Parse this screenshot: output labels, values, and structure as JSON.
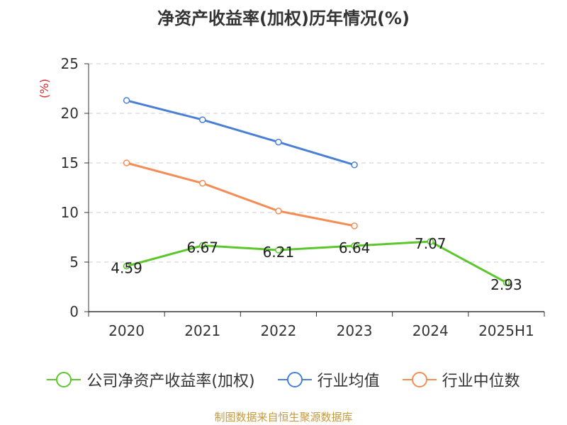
{
  "chart_data": {
    "type": "line",
    "title": "净资产收益率(加权)历年情况(%)",
    "ylabel": "(%)",
    "xlabel": "",
    "categories": [
      "2020",
      "2021",
      "2022",
      "2023",
      "2024",
      "2025H1"
    ],
    "ylim": [
      0,
      25
    ],
    "yticks": [
      "0",
      "5",
      "10",
      "15",
      "20",
      "25"
    ],
    "grid": true,
    "legend_position": "bottom",
    "series": [
      {
        "name": "公司净资产收益率(加权)",
        "color": "#5cc72c",
        "values": [
          4.59,
          6.67,
          6.21,
          6.64,
          7.07,
          2.93
        ],
        "labels": [
          "4.59",
          "6.67",
          "6.21",
          "6.64",
          "7.07",
          "2.93"
        ]
      },
      {
        "name": "行业均值",
        "color": "#4a7fd6",
        "values": [
          21.3,
          19.35,
          17.1,
          14.8,
          null,
          null
        ]
      },
      {
        "name": "行业中位数",
        "color": "#f48c56",
        "values": [
          15.0,
          12.95,
          10.15,
          8.65,
          null,
          null
        ]
      }
    ]
  },
  "source_text": "制图数据来自恒生聚源数据库",
  "ylabel_color": "#d62a2a"
}
